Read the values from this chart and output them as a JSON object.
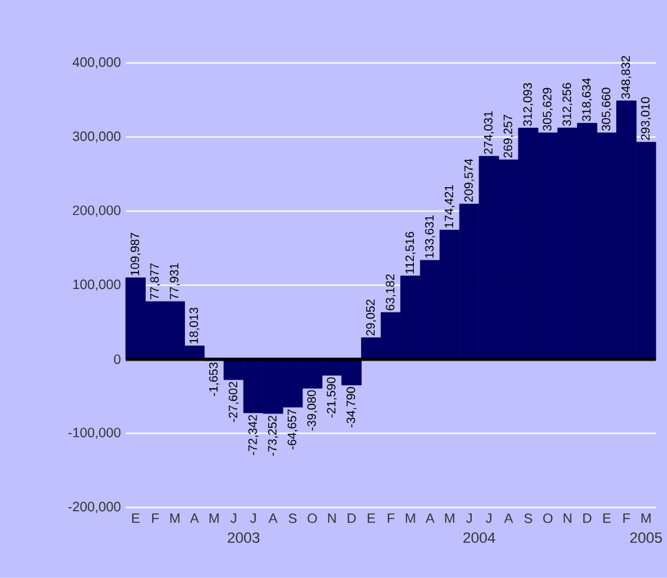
{
  "chart_data": {
    "type": "bar",
    "color": "#000066",
    "grid": "y",
    "categories": [
      "E",
      "F",
      "M",
      "A",
      "M",
      "J",
      "J",
      "A",
      "S",
      "O",
      "N",
      "D",
      "E",
      "F",
      "M",
      "A",
      "M",
      "J",
      "J",
      "A",
      "S",
      "O",
      "N",
      "D",
      "E",
      "F",
      "M"
    ],
    "values": [
      109987,
      77877,
      77931,
      18013,
      -1653,
      -27602,
      -72342,
      -73252,
      -64657,
      -39080,
      -21590,
      -34790,
      29052,
      63182,
      112516,
      133631,
      174421,
      209574,
      274031,
      269257,
      312093,
      305629,
      312256,
      318634,
      305660,
      348832,
      293010
    ],
    "value_labels": [
      "109,987",
      "77,877",
      "77,931",
      "18,013",
      "-1,653",
      "-27,602",
      "-72,342",
      "-73,252",
      "-64,657",
      "-39,080",
      "-21,590",
      "-34,790",
      "29,052",
      "63,182",
      "112,516",
      "133,631",
      "174,421",
      "209,574",
      "274,031",
      "269,257",
      "312,093",
      "305,629",
      "312,256",
      "318,634",
      "305,660",
      "348,832",
      "293,010"
    ],
    "ylim": [
      -200000,
      400000
    ],
    "yticks": [
      {
        "value": -200000,
        "label": "-200,000"
      },
      {
        "value": -100000,
        "label": "-100,000"
      },
      {
        "value": 0,
        "label": "0"
      },
      {
        "value": 100000,
        "label": "100,000"
      },
      {
        "value": 200000,
        "label": "200,000"
      },
      {
        "value": 300000,
        "label": "300,000"
      },
      {
        "value": 400000,
        "label": "400,000"
      }
    ],
    "annotations": [
      "2003",
      "2004",
      "2005"
    ]
  }
}
